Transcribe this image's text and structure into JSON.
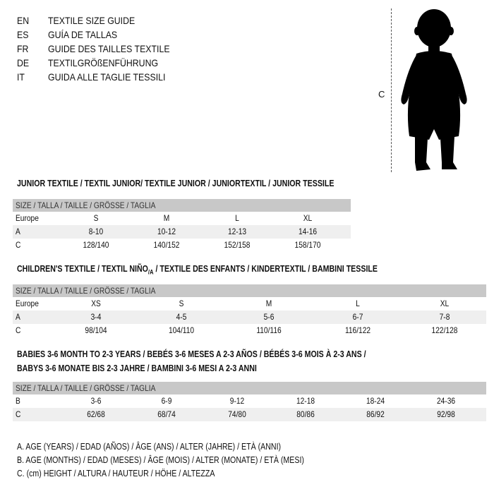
{
  "languages": [
    {
      "code": "EN",
      "text": "TEXTILE SIZE GUIDE"
    },
    {
      "code": "ES",
      "text": "GUÍA DE TALLAS"
    },
    {
      "code": "FR",
      "text": "GUIDE DES TAILLES TEXTILE"
    },
    {
      "code": "DE",
      "text": "TEXTILGRÖßENFÜHRUNG"
    },
    {
      "code": "IT",
      "text": "GUIDA ALLE TAGLIE TESSILI"
    }
  ],
  "figure": {
    "measure_label": "C",
    "icon": "child-silhouette-icon"
  },
  "junior": {
    "title": "JUNIOR TEXTILE / TEXTIL JUNIOR/ TEXTILE JUNIOR / JUNIORTEXTIL / JUNIOR TESSILE",
    "header": "SIZE / TALLA / TAILLE / GRÖSSE / TAGLIA",
    "rows": [
      {
        "label": "Europe",
        "cells": [
          "S",
          "M",
          "L",
          "XL"
        ]
      },
      {
        "label": "A",
        "cells": [
          "8-10",
          "10-12",
          "12-13",
          "14-16"
        ]
      },
      {
        "label": "C",
        "cells": [
          "128/140",
          "140/152",
          "152/158",
          "158/170"
        ]
      }
    ]
  },
  "children": {
    "title_a": "CHILDREN'S TEXTILE / TEXTIL NIÑO",
    "title_sub": "/A",
    "title_b": " / TEXTILE DES ENFANTS / KINDERTEXTIL / BAMBINI TESSILE",
    "header": "SIZE / TALLA / TAILLE / GRÖSSE / TAGLIA",
    "rows": [
      {
        "label": "Europe",
        "cells": [
          "XS",
          "S",
          "M",
          "L",
          "XL"
        ]
      },
      {
        "label": "A",
        "cells": [
          "3-4",
          "4-5",
          "5-6",
          "6-7",
          "7-8"
        ]
      },
      {
        "label": "C",
        "cells": [
          "98/104",
          "104/110",
          "110/116",
          "116/122",
          "122/128"
        ]
      }
    ]
  },
  "babies": {
    "title_line1": "BABIES 3-6 MONTH TO 2-3 YEARS / BEBÉS 3-6 MESES A 2-3 AÑOS / BÉBÉS 3-6 MOIS À 2-3 ANS /",
    "title_line2": "BABYS 3-6 MONATE BIS 2-3 JAHRE / BAMBINI 3-6 MESI A 2-3 ANNI",
    "header": "SIZE / TALLA / TAILLE / GRÖSSE / TAGLIA",
    "rows": [
      {
        "label": "B",
        "cells": [
          "3-6",
          "6-9",
          "9-12",
          "12-18",
          "18-24",
          "24-36"
        ]
      },
      {
        "label": "C",
        "cells": [
          "62/68",
          "68/74",
          "74/80",
          "80/86",
          "86/92",
          "92/98"
        ]
      }
    ]
  },
  "legend": [
    "A. AGE (YEARS) / EDAD (AÑOS) / ÂGE (ANS) / ALTER (JAHRE) / ETÀ (ANNI)",
    "B. AGE (MONTHS) / EDAD (MESES) / ÂGE (MOIS) / ALTER (MONATE) / ETÀ (MESI)",
    "C. (cm) HEIGHT / ALTURA / HAUTEUR / HÖHE / ALTEZZA"
  ]
}
